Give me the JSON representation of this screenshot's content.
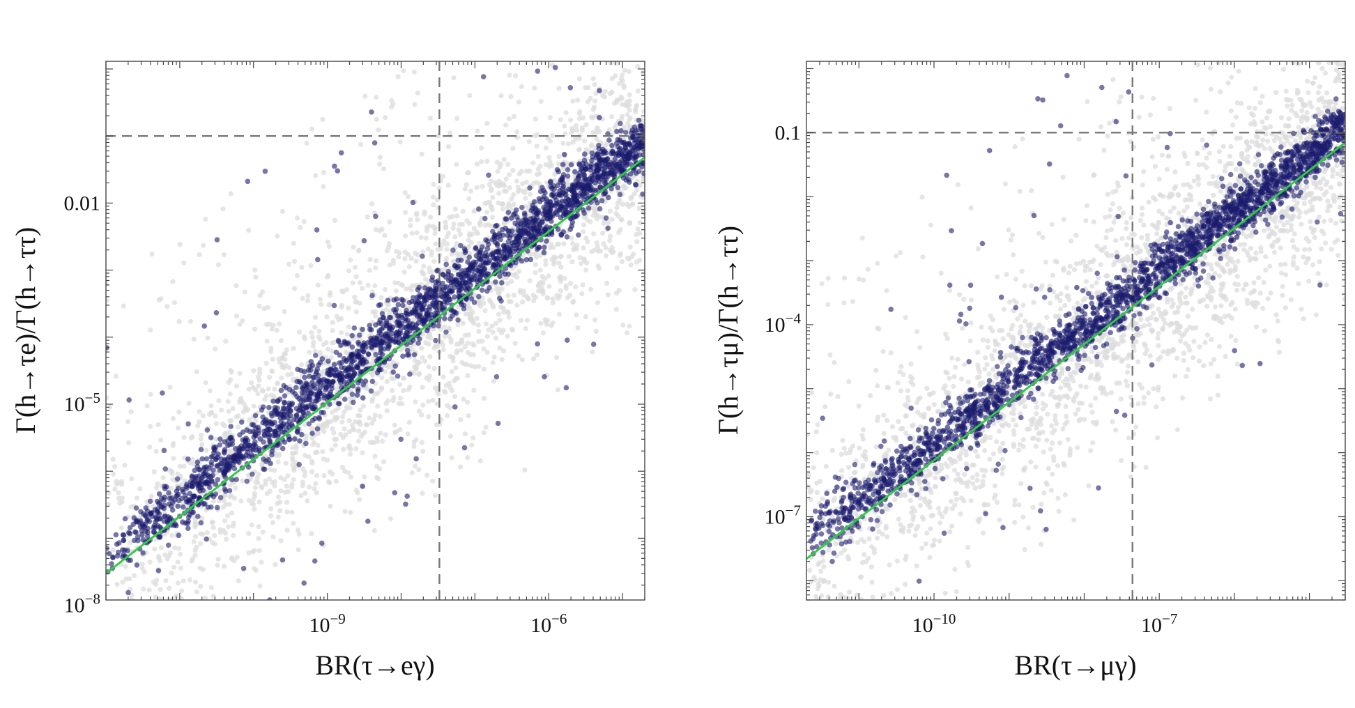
{
  "chart_data": [
    {
      "type": "scatter",
      "xlabel": "BR(τ→eγ)",
      "ylabel": "Γ(h→τe)/Γ(h→ττ)",
      "xscale": "log",
      "yscale": "log",
      "xlim": [
        1e-12,
        2e-05
      ],
      "ylim": [
        1.2e-08,
        1.3
      ],
      "x_tick_values": [
        1e-09,
        1e-06
      ],
      "x_tick_labels": [
        "10^-9",
        "10^-6"
      ],
      "y_tick_values": [
        1e-08,
        1e-05,
        0.01
      ],
      "y_tick_labels": [
        "10^-8",
        "10^-5",
        "0.01"
      ],
      "reference_lines": {
        "vertical_x": 3.3e-08,
        "horizontal_y": 0.1,
        "style": "dashed"
      },
      "fit_line": {
        "points": [
          [
            1e-12,
            3e-08
          ],
          [
            2e-05,
            0.048
          ]
        ],
        "color": "#2ecc40"
      },
      "series": [
        {
          "role": "all points",
          "color": "#dcdcdc",
          "spread_decades": 0.85,
          "outlier_fraction": 0.12
        },
        {
          "role": "selected points",
          "color": "#1a1a6e",
          "spread_decades": 0.22,
          "outlier_fraction": 0.04
        }
      ]
    },
    {
      "type": "scatter",
      "xlabel": "BR(τ→μγ)",
      "ylabel": "Γ(h→τμ)/Γ(h→ττ)",
      "xscale": "log",
      "yscale": "log",
      "xlim": [
        2e-12,
        3e-05
      ],
      "ylim": [
        5e-09,
        1.3
      ],
      "x_tick_values": [
        1e-10,
        1e-07
      ],
      "x_tick_labels": [
        "10^-10",
        "10^-7"
      ],
      "y_tick_values": [
        1e-07,
        0.0001,
        0.1
      ],
      "y_tick_labels": [
        "10^-7",
        "10^-4",
        "0.1"
      ],
      "reference_lines": {
        "vertical_x": 4.4e-08,
        "horizontal_y": 0.1,
        "style": "dashed"
      },
      "fit_line": {
        "points": [
          [
            2e-12,
            2.2e-08
          ],
          [
            3e-05,
            0.07
          ]
        ],
        "color": "#2ecc40"
      },
      "series": [
        {
          "role": "all points",
          "color": "#dcdcdc",
          "spread_decades": 0.85,
          "outlier_fraction": 0.12
        },
        {
          "role": "selected points",
          "color": "#1a1a6e",
          "spread_decades": 0.22,
          "outlier_fraction": 0.04
        }
      ]
    }
  ]
}
